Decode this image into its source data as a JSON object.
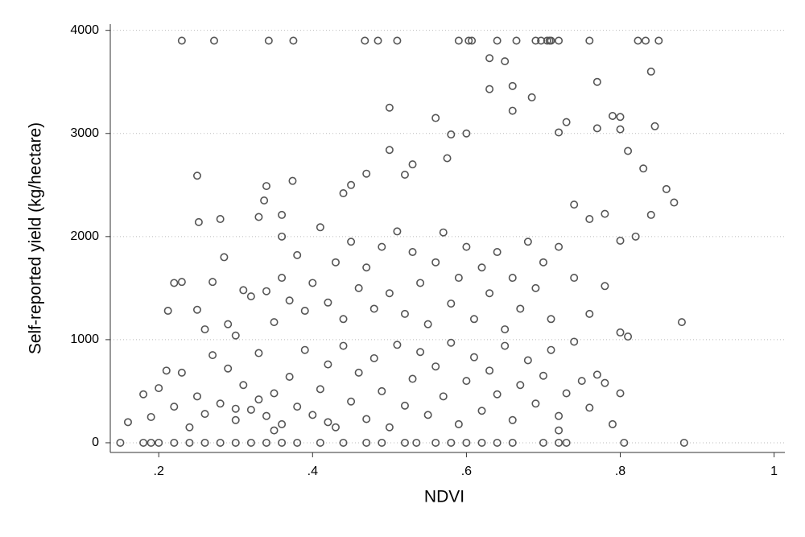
{
  "chart_data": {
    "type": "scatter",
    "x_label": "NDVI",
    "y_label": "Self-reported yield (kg/hectare)",
    "color": "#555555",
    "grid": true,
    "xlim": [
      0.137,
      1.014
    ],
    "ylim": [
      -94,
      4060
    ],
    "xticks": [
      {
        "value": 0.2,
        "label": ".2"
      },
      {
        "value": 0.4,
        "label": ".4"
      },
      {
        "value": 0.6,
        "label": ".6"
      },
      {
        "value": 0.8,
        "label": ".8"
      },
      1
    ],
    "yticks": [
      0,
      1000,
      2000,
      3000,
      4000
    ],
    "x": [
      0.23,
      0.272,
      0.343,
      0.375,
      0.468,
      0.485,
      0.51,
      0.59,
      0.603,
      0.607,
      0.64,
      0.665,
      0.69,
      0.697,
      0.705,
      0.71,
      0.72,
      0.76,
      0.823,
      0.833,
      0.85,
      0.708,
      0.15,
      0.18,
      0.19,
      0.2,
      0.22,
      0.24,
      0.26,
      0.28,
      0.3,
      0.32,
      0.34,
      0.36,
      0.38,
      0.41,
      0.44,
      0.47,
      0.49,
      0.52,
      0.535,
      0.56,
      0.58,
      0.6,
      0.62,
      0.64,
      0.66,
      0.7,
      0.72,
      0.73,
      0.805,
      0.883,
      0.25,
      0.252,
      0.28,
      0.285,
      0.22,
      0.23,
      0.212,
      0.34,
      0.337,
      0.33,
      0.374,
      0.36,
      0.36,
      0.41,
      0.44,
      0.45,
      0.47,
      0.5,
      0.5,
      0.52,
      0.53,
      0.56,
      0.575,
      0.58,
      0.6,
      0.63,
      0.63,
      0.65,
      0.66,
      0.66,
      0.685,
      0.72,
      0.73,
      0.77,
      0.77,
      0.79,
      0.8,
      0.8,
      0.84,
      0.845,
      0.81,
      0.83,
      0.86,
      0.87,
      0.84,
      0.82,
      0.8,
      0.78,
      0.76,
      0.74,
      0.25,
      0.26,
      0.27,
      0.29,
      0.3,
      0.31,
      0.32,
      0.34,
      0.35,
      0.36,
      0.37,
      0.38,
      0.39,
      0.4,
      0.42,
      0.43,
      0.44,
      0.45,
      0.46,
      0.47,
      0.48,
      0.49,
      0.5,
      0.51,
      0.52,
      0.53,
      0.54,
      0.55,
      0.56,
      0.57,
      0.58,
      0.59,
      0.6,
      0.61,
      0.62,
      0.63,
      0.64,
      0.65,
      0.66,
      0.67,
      0.68,
      0.69,
      0.7,
      0.71,
      0.72,
      0.74,
      0.76,
      0.78,
      0.8,
      0.88,
      0.16,
      0.18,
      0.19,
      0.2,
      0.21,
      0.22,
      0.23,
      0.24,
      0.25,
      0.26,
      0.27,
      0.28,
      0.29,
      0.3,
      0.31,
      0.32,
      0.33,
      0.34,
      0.35,
      0.36,
      0.37,
      0.38,
      0.39,
      0.4,
      0.41,
      0.42,
      0.43,
      0.44,
      0.45,
      0.46,
      0.47,
      0.48,
      0.49,
      0.5,
      0.51,
      0.52,
      0.53,
      0.54,
      0.55,
      0.56,
      0.57,
      0.58,
      0.59,
      0.6,
      0.61,
      0.62,
      0.63,
      0.64,
      0.65,
      0.66,
      0.67,
      0.68,
      0.69,
      0.7,
      0.71,
      0.72,
      0.73,
      0.74,
      0.75,
      0.76,
      0.77,
      0.78,
      0.79,
      0.8,
      0.81,
      0.72,
      0.42,
      0.35,
      0.3,
      0.33
    ],
    "values": [
      3900,
      3900,
      3900,
      3900,
      3900,
      3900,
      3900,
      3900,
      3900,
      3900,
      3900,
      3900,
      3900,
      3900,
      3900,
      3900,
      3900,
      3900,
      3900,
      3900,
      3900,
      3900,
      0,
      0,
      0,
      0,
      0,
      0,
      0,
      0,
      0,
      0,
      0,
      0,
      0,
      0,
      0,
      0,
      0,
      0,
      0,
      0,
      0,
      0,
      0,
      0,
      0,
      0,
      0,
      0,
      0,
      0,
      2590,
      2140,
      2170,
      1800,
      1550,
      1560,
      1280,
      2490,
      2350,
      2190,
      2540,
      2210,
      2000,
      2090,
      2420,
      2500,
      2610,
      3250,
      2840,
      2600,
      2700,
      3150,
      2760,
      2990,
      3000,
      3730,
      3430,
      3700,
      3460,
      3220,
      3350,
      3010,
      3110,
      3500,
      3050,
      3170,
      3160,
      3040,
      3600,
      3070,
      2830,
      2660,
      2460,
      2330,
      2210,
      2000,
      1960,
      2220,
      2170,
      2310,
      1290,
      1100,
      1560,
      1150,
      1040,
      1480,
      1420,
      1470,
      1170,
      1600,
      1380,
      1820,
      1280,
      1550,
      1360,
      1750,
      1200,
      1950,
      1500,
      1700,
      1300,
      1900,
      1450,
      2050,
      1250,
      1850,
      1550,
      1150,
      1750,
      2040,
      1350,
      1600,
      1900,
      1200,
      1700,
      1450,
      1850,
      1100,
      1600,
      1300,
      1950,
      1500,
      1750,
      1200,
      1900,
      1600,
      1250,
      1520,
      1070,
      1170,
      200,
      470,
      250,
      530,
      700,
      350,
      680,
      150,
      450,
      280,
      850,
      380,
      720,
      220,
      560,
      320,
      870,
      260,
      480,
      180,
      640,
      350,
      900,
      270,
      520,
      760,
      150,
      940,
      400,
      680,
      230,
      820,
      500,
      150,
      950,
      360,
      620,
      880,
      270,
      740,
      450,
      970,
      180,
      600,
      830,
      310,
      700,
      470,
      940,
      220,
      560,
      800,
      380,
      650,
      900,
      260,
      480,
      980,
      600,
      340,
      660,
      580,
      180,
      480,
      1030,
      120,
      200,
      120,
      330,
      420
    ]
  }
}
